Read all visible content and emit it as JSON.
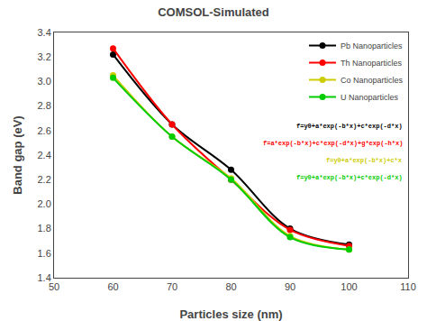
{
  "chart_data": {
    "type": "line",
    "title": "COMSOL-Simulated",
    "x_label": "Particles size (nm)",
    "y_label": "Band gap (eV)",
    "x": [
      60,
      70,
      80,
      90,
      100
    ],
    "series": [
      {
        "name": "Pb Nanoparticles",
        "color": "#000000",
        "values": [
          3.22,
          2.65,
          2.28,
          1.8,
          1.67
        ],
        "marker": "circle",
        "line_style": "solid"
      },
      {
        "name": "Th Nanoparticles",
        "color": "#ff0000",
        "values": [
          3.27,
          2.65,
          2.2,
          1.79,
          1.66
        ],
        "marker": "circle",
        "line_style": "solid"
      },
      {
        "name": "Co Nanoparticles",
        "color": "#cccc00",
        "values": [
          3.05,
          2.55,
          2.21,
          1.74,
          1.63
        ],
        "marker": "circle",
        "line_style": "solid"
      },
      {
        "name": "U Nanoparticles",
        "color": "#00cc00",
        "values": [
          3.03,
          2.55,
          2.2,
          1.73,
          1.63
        ],
        "marker": "circle",
        "line_style": "solid"
      }
    ],
    "annotations": [
      {
        "text": "f=y0+a*exp(-b*x)+c*exp(-d*x)",
        "color": "#000000"
      },
      {
        "text": "f=a*exp(-b*x)+c*exp(-d*x)+g*exp(-h*x)",
        "color": "#ff0000"
      },
      {
        "text": "f=y0+a*exp(-b*x)+c*x",
        "color": "#cccc00"
      },
      {
        "text": "f=y0+a*exp(-b*x)+c*exp(-d*x)",
        "color": "#00cc00"
      }
    ],
    "xlim": [
      50,
      110
    ],
    "ylim": [
      1.4,
      3.4
    ],
    "xticks": [
      50,
      60,
      70,
      80,
      90,
      100,
      110
    ],
    "yticks": [
      1.4,
      1.6,
      1.8,
      {
        "value": 2.0,
        "label": "2.0"
      },
      2.2,
      2.4,
      2.6,
      2.8,
      {
        "value": 3.0,
        "label": "3.0"
      },
      3.2,
      3.4
    ],
    "grid": false,
    "legend": "upper right"
  }
}
